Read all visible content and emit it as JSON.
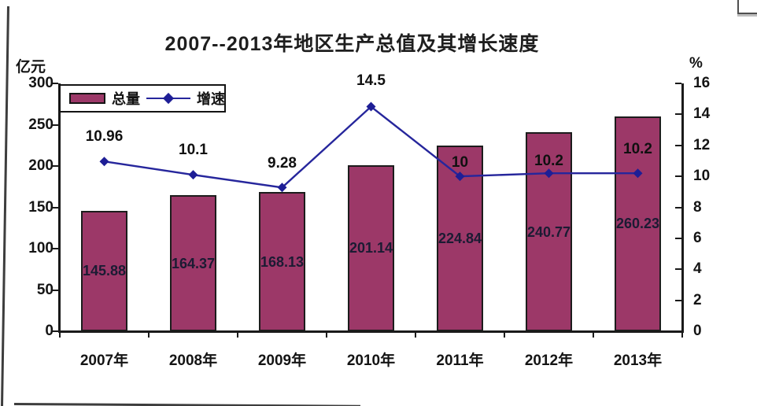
{
  "chart_data": {
    "type": "bar+line",
    "title": "2007--2013年地区生产总值及其增长速度",
    "categories": [
      "2007年",
      "2008年",
      "2009年",
      "2010年",
      "2011年",
      "2012年",
      "2013年"
    ],
    "series": [
      {
        "name": "总量",
        "type": "bar",
        "axis": "left",
        "values": [
          145.88,
          164.37,
          168.13,
          201.14,
          224.84,
          240.77,
          260.23
        ],
        "color": "#9C3868"
      },
      {
        "name": "增速",
        "type": "line",
        "axis": "right",
        "values": [
          10.96,
          10.1,
          9.28,
          14.5,
          10,
          10.2,
          10.2
        ],
        "color": "#26269C"
      }
    ],
    "left_axis": {
      "unit": "亿元",
      "min": 0,
      "max": 300,
      "step": 50,
      "ticks": [
        0,
        50,
        100,
        150,
        200,
        250,
        300
      ]
    },
    "right_axis": {
      "unit": "%",
      "min": 0,
      "max": 16,
      "step": 2,
      "ticks": [
        0,
        2,
        4,
        6,
        8,
        10,
        12,
        14,
        16
      ]
    },
    "legend": {
      "position": "top-left",
      "items": [
        "总量",
        "增速"
      ]
    },
    "grid": false,
    "colors": {
      "bar": "#9C3868",
      "bar_border": "#1c1c1c",
      "line": "#26269C",
      "text": "#141414"
    }
  }
}
